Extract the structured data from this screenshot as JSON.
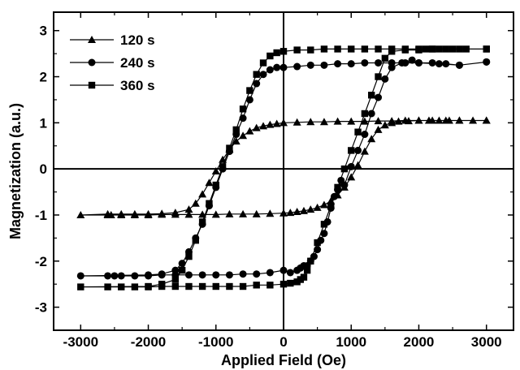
{
  "chart_data": {
    "type": "line",
    "xlabel": "Applied Field (Oe)",
    "ylabel": "Magnetization (a.u.)",
    "xlim": [
      -3400,
      3400
    ],
    "ylim": [
      -3.5,
      3.4
    ],
    "xticks": [
      -3000,
      -2000,
      -1000,
      0,
      1000,
      2000,
      3000
    ],
    "xtick_labels": [
      "-3000",
      "-2000",
      "-1000",
      "0",
      "1000",
      "2000",
      "3000"
    ],
    "yticks": [
      -3,
      -2,
      -1,
      0,
      1,
      2,
      3
    ],
    "ytick_labels": [
      "-3",
      "-2",
      "-1",
      "0",
      "1",
      "2",
      "3"
    ],
    "grid": false,
    "zero_lines": true,
    "legend_position": "top-left",
    "series": [
      {
        "name": "120 s",
        "marker": "triangle",
        "points": [
          [
            3000,
            1.05
          ],
          [
            2800,
            1.05
          ],
          [
            2600,
            1.05
          ],
          [
            2450,
            1.05
          ],
          [
            2300,
            1.05
          ],
          [
            2150,
            1.05
          ],
          [
            2000,
            1.05
          ],
          [
            1850,
            1.04
          ],
          [
            1700,
            1.03
          ],
          [
            1600,
            1.0
          ],
          [
            1500,
            0.95
          ],
          [
            1400,
            0.85
          ],
          [
            1300,
            0.65
          ],
          [
            1200,
            0.38
          ],
          [
            1100,
            0.08
          ],
          [
            1000,
            -0.18
          ],
          [
            900,
            -0.4
          ],
          [
            800,
            -0.57
          ],
          [
            700,
            -0.7
          ],
          [
            600,
            -0.78
          ],
          [
            500,
            -0.84
          ],
          [
            400,
            -0.88
          ],
          [
            300,
            -0.91
          ],
          [
            200,
            -0.93
          ],
          [
            100,
            -0.95
          ],
          [
            0,
            -0.96
          ],
          [
            -200,
            -0.97
          ],
          [
            -400,
            -0.98
          ],
          [
            -600,
            -0.98
          ],
          [
            -800,
            -0.98
          ],
          [
            -1000,
            -0.99
          ],
          [
            -1200,
            -0.99
          ],
          [
            -1400,
            -0.99
          ],
          [
            -1600,
            -0.99
          ],
          [
            -1800,
            -0.99
          ],
          [
            -2000,
            -1.0
          ],
          [
            -2200,
            -1.0
          ],
          [
            -2400,
            -1.0
          ],
          [
            -2550,
            -1.0
          ],
          [
            -2600,
            -1.0
          ],
          [
            -3000,
            -1.0
          ],
          [
            -2600,
            -0.98
          ],
          [
            -2400,
            -0.98
          ],
          [
            -2200,
            -0.98
          ],
          [
            -2000,
            -0.98
          ],
          [
            -1800,
            -0.97
          ],
          [
            -1600,
            -0.95
          ],
          [
            -1400,
            -0.88
          ],
          [
            -1300,
            -0.75
          ],
          [
            -1200,
            -0.55
          ],
          [
            -1100,
            -0.3
          ],
          [
            -1000,
            -0.05
          ],
          [
            -900,
            0.2
          ],
          [
            -800,
            0.42
          ],
          [
            -700,
            0.6
          ],
          [
            -600,
            0.72
          ],
          [
            -500,
            0.82
          ],
          [
            -400,
            0.89
          ],
          [
            -300,
            0.93
          ],
          [
            -200,
            0.96
          ],
          [
            -100,
            0.98
          ],
          [
            0,
            1.0
          ],
          [
            200,
            1.01
          ],
          [
            400,
            1.02
          ],
          [
            600,
            1.02
          ],
          [
            800,
            1.03
          ],
          [
            1000,
            1.03
          ],
          [
            1200,
            1.03
          ],
          [
            1400,
            1.04
          ],
          [
            1600,
            1.04
          ],
          [
            1800,
            1.05
          ],
          [
            2000,
            1.05
          ],
          [
            2200,
            1.05
          ],
          [
            2400,
            1.05
          ],
          [
            2600,
            1.05
          ],
          [
            3000,
            1.05
          ]
        ]
      },
      {
        "name": "240 s",
        "marker": "circle",
        "points": [
          [
            3000,
            2.32
          ],
          [
            2600,
            2.25
          ],
          [
            2300,
            2.28
          ],
          [
            2000,
            2.3
          ],
          [
            1900,
            2.36
          ],
          [
            1750,
            2.3
          ],
          [
            1600,
            2.2
          ],
          [
            1500,
            1.95
          ],
          [
            1400,
            1.55
          ],
          [
            1300,
            1.2
          ],
          [
            1200,
            0.75
          ],
          [
            1100,
            0.4
          ],
          [
            1000,
            0.05
          ],
          [
            900,
            -0.35
          ],
          [
            850,
            -0.25
          ],
          [
            800,
            -0.45
          ],
          [
            750,
            -0.6
          ],
          [
            700,
            -0.85
          ],
          [
            650,
            -1.15
          ],
          [
            600,
            -1.4
          ],
          [
            550,
            -1.55
          ],
          [
            500,
            -1.75
          ],
          [
            450,
            -1.9
          ],
          [
            400,
            -2.0
          ],
          [
            350,
            -2.1
          ],
          [
            300,
            -2.1
          ],
          [
            250,
            -2.15
          ],
          [
            200,
            -2.2
          ],
          [
            100,
            -2.25
          ],
          [
            0,
            -2.2
          ],
          [
            -200,
            -2.25
          ],
          [
            -400,
            -2.28
          ],
          [
            -600,
            -2.28
          ],
          [
            -800,
            -2.3
          ],
          [
            -1000,
            -2.3
          ],
          [
            -1200,
            -2.3
          ],
          [
            -1400,
            -2.3
          ],
          [
            -1600,
            -2.3
          ],
          [
            -1800,
            -2.3
          ],
          [
            -2000,
            -2.32
          ],
          [
            -2200,
            -2.32
          ],
          [
            -2400,
            -2.32
          ],
          [
            -2500,
            -2.32
          ],
          [
            -2600,
            -2.32
          ],
          [
            -3000,
            -2.32
          ],
          [
            -2000,
            -2.3
          ],
          [
            -1800,
            -2.28
          ],
          [
            -1600,
            -2.2
          ],
          [
            -1500,
            -2.05
          ],
          [
            -1400,
            -1.8
          ],
          [
            -1300,
            -1.5
          ],
          [
            -1200,
            -1.2
          ],
          [
            -1100,
            -0.8
          ],
          [
            -1000,
            -0.4
          ],
          [
            -900,
            0.0
          ],
          [
            -800,
            0.38
          ],
          [
            -700,
            0.75
          ],
          [
            -600,
            1.1
          ],
          [
            -500,
            1.5
          ],
          [
            -400,
            1.85
          ],
          [
            -300,
            2.05
          ],
          [
            -200,
            2.15
          ],
          [
            -100,
            2.2
          ],
          [
            0,
            2.2
          ],
          [
            200,
            2.22
          ],
          [
            400,
            2.25
          ],
          [
            600,
            2.25
          ],
          [
            800,
            2.28
          ],
          [
            1000,
            2.28
          ],
          [
            1200,
            2.3
          ],
          [
            1400,
            2.3
          ],
          [
            1600,
            2.3
          ],
          [
            1800,
            2.3
          ],
          [
            2000,
            2.3
          ],
          [
            2200,
            2.3
          ],
          [
            2400,
            2.28
          ],
          [
            2600,
            2.25
          ],
          [
            3000,
            2.32
          ]
        ]
      },
      {
        "name": "360 s",
        "marker": "square",
        "points": [
          [
            3000,
            2.6
          ],
          [
            2700,
            2.6
          ],
          [
            2500,
            2.6
          ],
          [
            2300,
            2.6
          ],
          [
            2200,
            2.6
          ],
          [
            2100,
            2.6
          ],
          [
            2000,
            2.58
          ],
          [
            1800,
            2.58
          ],
          [
            1600,
            2.55
          ],
          [
            1500,
            2.4
          ],
          [
            1400,
            2.0
          ],
          [
            1300,
            1.6
          ],
          [
            1200,
            1.2
          ],
          [
            1100,
            0.8
          ],
          [
            1000,
            0.4
          ],
          [
            900,
            0.0
          ],
          [
            800,
            -0.4
          ],
          [
            700,
            -0.8
          ],
          [
            600,
            -1.2
          ],
          [
            500,
            -1.6
          ],
          [
            400,
            -2.0
          ],
          [
            350,
            -2.2
          ],
          [
            300,
            -2.35
          ],
          [
            250,
            -2.4
          ],
          [
            200,
            -2.45
          ],
          [
            100,
            -2.48
          ],
          [
            0,
            -2.5
          ],
          [
            -200,
            -2.52
          ],
          [
            -400,
            -2.52
          ],
          [
            -600,
            -2.55
          ],
          [
            -800,
            -2.55
          ],
          [
            -1000,
            -2.55
          ],
          [
            -1200,
            -2.55
          ],
          [
            -1400,
            -2.55
          ],
          [
            -1600,
            -2.55
          ],
          [
            -1800,
            -2.55
          ],
          [
            -2000,
            -2.56
          ],
          [
            -2200,
            -2.56
          ],
          [
            -2400,
            -2.56
          ],
          [
            -2600,
            -2.56
          ],
          [
            -3000,
            -2.56
          ],
          [
            -2000,
            -2.55
          ],
          [
            -1800,
            -2.5
          ],
          [
            -1600,
            -2.4
          ],
          [
            -1500,
            -2.2
          ],
          [
            -1400,
            -1.9
          ],
          [
            -1300,
            -1.55
          ],
          [
            -1200,
            -1.15
          ],
          [
            -1100,
            -0.75
          ],
          [
            -1000,
            -0.35
          ],
          [
            -900,
            0.05
          ],
          [
            -800,
            0.45
          ],
          [
            -700,
            0.85
          ],
          [
            -600,
            1.3
          ],
          [
            -500,
            1.7
          ],
          [
            -400,
            2.05
          ],
          [
            -300,
            2.3
          ],
          [
            -200,
            2.45
          ],
          [
            -100,
            2.52
          ],
          [
            0,
            2.55
          ],
          [
            200,
            2.58
          ],
          [
            400,
            2.58
          ],
          [
            600,
            2.6
          ],
          [
            800,
            2.6
          ],
          [
            1000,
            2.6
          ],
          [
            1200,
            2.6
          ],
          [
            1400,
            2.6
          ],
          [
            1600,
            2.6
          ],
          [
            1800,
            2.6
          ],
          [
            2000,
            2.6
          ],
          [
            2200,
            2.6
          ],
          [
            2400,
            2.6
          ],
          [
            2600,
            2.6
          ],
          [
            3000,
            2.6
          ]
        ]
      }
    ]
  }
}
